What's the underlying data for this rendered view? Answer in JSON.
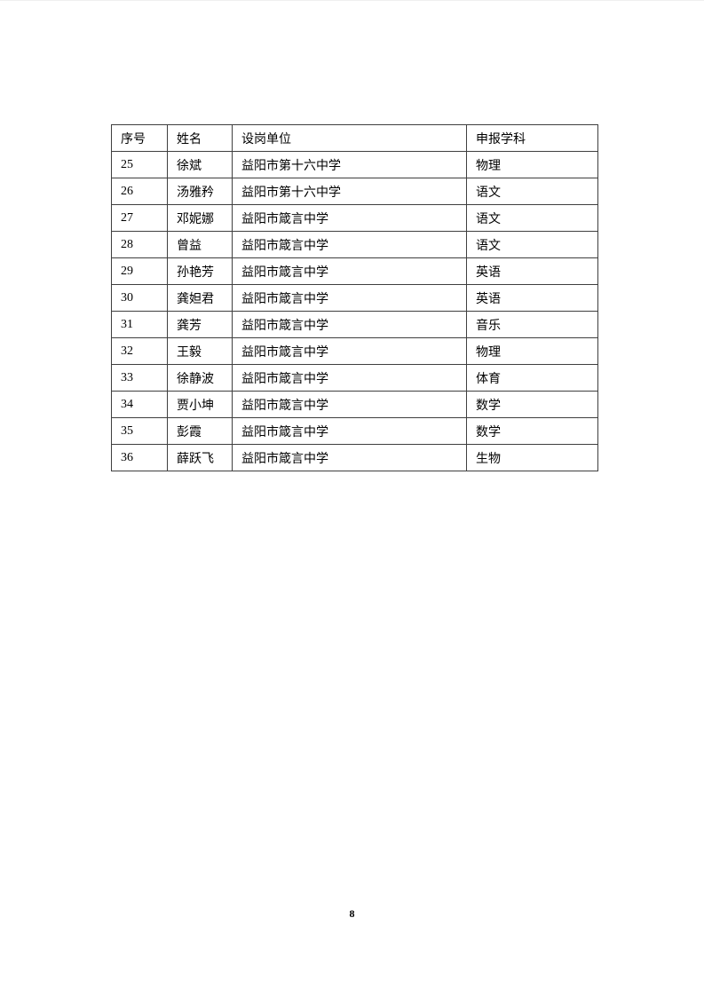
{
  "page": {
    "number": "8"
  },
  "table": {
    "headers": [
      "序号",
      "姓名",
      "设岗单位",
      "申报学科"
    ],
    "rows": [
      [
        "25",
        "徐斌",
        "益阳市第十六中学",
        "物理"
      ],
      [
        "26",
        "汤雅矜",
        "益阳市第十六中学",
        "语文"
      ],
      [
        "27",
        "邓妮娜",
        "益阳市箴言中学",
        "语文"
      ],
      [
        "28",
        "曾益",
        "益阳市箴言中学",
        "语文"
      ],
      [
        "29",
        "孙艳芳",
        "益阳市箴言中学",
        "英语"
      ],
      [
        "30",
        "龚妲君",
        "益阳市箴言中学",
        "英语"
      ],
      [
        "31",
        "龚芳",
        "益阳市箴言中学",
        "音乐"
      ],
      [
        "32",
        "王毅",
        "益阳市箴言中学",
        "物理"
      ],
      [
        "33",
        "徐静波",
        "益阳市箴言中学",
        "体育"
      ],
      [
        "34",
        "贾小坤",
        "益阳市箴言中学",
        "数学"
      ],
      [
        "35",
        "彭霞",
        "益阳市箴言中学",
        "数学"
      ],
      [
        "36",
        "薛跃飞",
        "益阳市箴言中学",
        "生物"
      ]
    ]
  },
  "colors": {
    "border": "#3f3f3f",
    "text": "#000000",
    "background": "#ffffff"
  }
}
